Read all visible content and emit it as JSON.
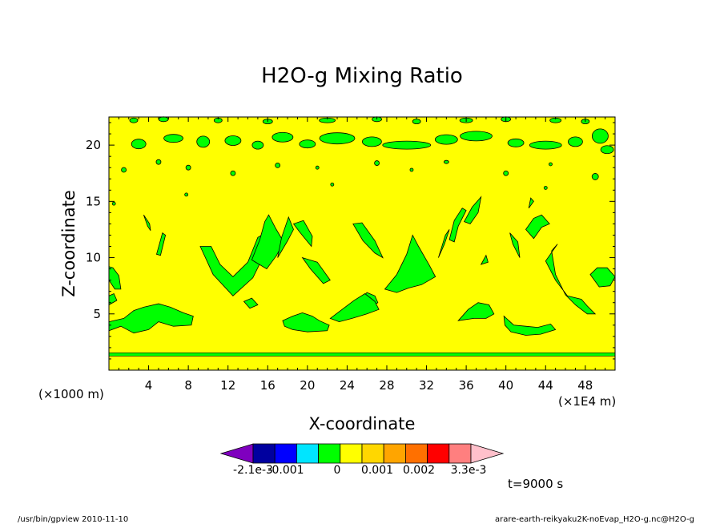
{
  "chart_data": {
    "type": "heatmap",
    "title": "H2O-g Mixing Ratio",
    "xlabel": "X-coordinate",
    "ylabel": "Z-coordinate",
    "x_unit_left": "(×1000 m)",
    "x_unit_right": "(×1E4 m)",
    "x_ticks": [
      "4",
      "8",
      "12",
      "16",
      "20",
      "24",
      "28",
      "32",
      "36",
      "40",
      "44",
      "48"
    ],
    "y_ticks": [
      "5",
      "10",
      "15",
      "20"
    ],
    "xlim": [
      0,
      51
    ],
    "ylim": [
      0,
      22.5
    ],
    "time_label": "t=9000 s",
    "colorbar": {
      "colors": [
        "#7f00bf",
        "#00009f",
        "#0000ff",
        "#00e5ff",
        "#00ff00",
        "#ffff00",
        "#ffd700",
        "#ffa500",
        "#ff7000",
        "#ff0000",
        "#ff7f7f",
        "#ffc0cb"
      ],
      "labels": [
        "-2.1e-3",
        "-0.001",
        "0",
        "0.001",
        "0.002",
        "3.3e-3"
      ]
    },
    "background_color": "#ffff00",
    "contour_color": "#00ff00",
    "low_level_band_z": 1.4
  },
  "footer": {
    "left": "/usr/bin/gpview   2010-11-10",
    "right": "arare-earth-reikyaku2K-noEvap_H2O-g.nc@H2O-g"
  }
}
